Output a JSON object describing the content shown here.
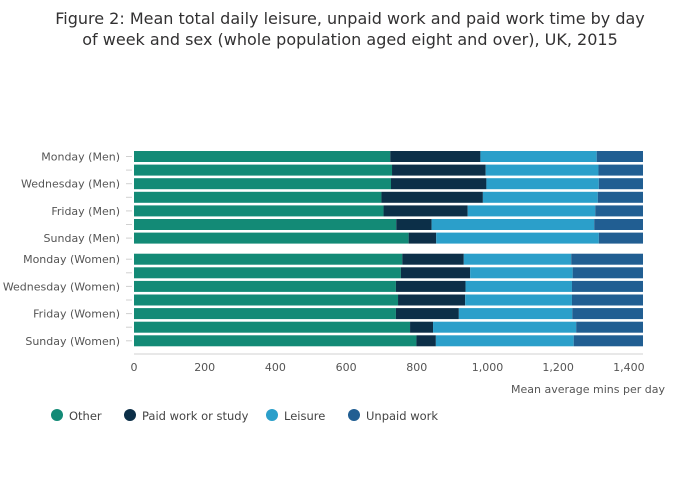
{
  "chart_data": {
    "type": "bar",
    "orientation": "horizontal",
    "stacked": true,
    "title_lines": [
      "Figure 2: Mean total daily leisure, unpaid work and paid work time by day",
      "of week and sex (whole population aged eight and over), UK, 2015"
    ],
    "xlabel": "Mean average mins per day",
    "xlim": [
      0,
      1440
    ],
    "xticks": [
      "0",
      "200",
      "400",
      "600",
      "800",
      "1,000",
      "1,200",
      "1,400"
    ],
    "xtick_values": [
      0,
      200,
      400,
      600,
      800,
      1000,
      1200,
      1400
    ],
    "grid": false,
    "legend_position": "bottom-left",
    "categories": [
      "Monday (Men)",
      "",
      "Wednesday (Men)",
      "",
      "Friday (Men)",
      "",
      "Sunday (Men)",
      "Monday (Women)",
      "",
      "Wednesday (Women)",
      "",
      "Friday (Women)",
      "",
      "Sunday (Women)"
    ],
    "series": [
      {
        "name": "Other",
        "color": "#138a76",
        "values": [
          725,
          730,
          727,
          700,
          706,
          742,
          777,
          759,
          755,
          741,
          747,
          741,
          781,
          799
        ]
      },
      {
        "name": "Paid work or study",
        "color": "#0c2f48",
        "values": [
          255,
          265,
          270,
          287,
          238,
          100,
          78,
          174,
          196,
          197,
          190,
          178,
          65,
          55
        ]
      },
      {
        "name": "Leisure",
        "color": "#2b9fca",
        "values": [
          329,
          319,
          318,
          325,
          361,
          460,
          460,
          304,
          290,
          301,
          302,
          321,
          405,
          390
        ]
      },
      {
        "name": "Unpaid work",
        "color": "#215e92",
        "values": [
          131,
          126,
          125,
          128,
          135,
          138,
          125,
          203,
          199,
          201,
          201,
          200,
          189,
          196
        ]
      }
    ]
  }
}
